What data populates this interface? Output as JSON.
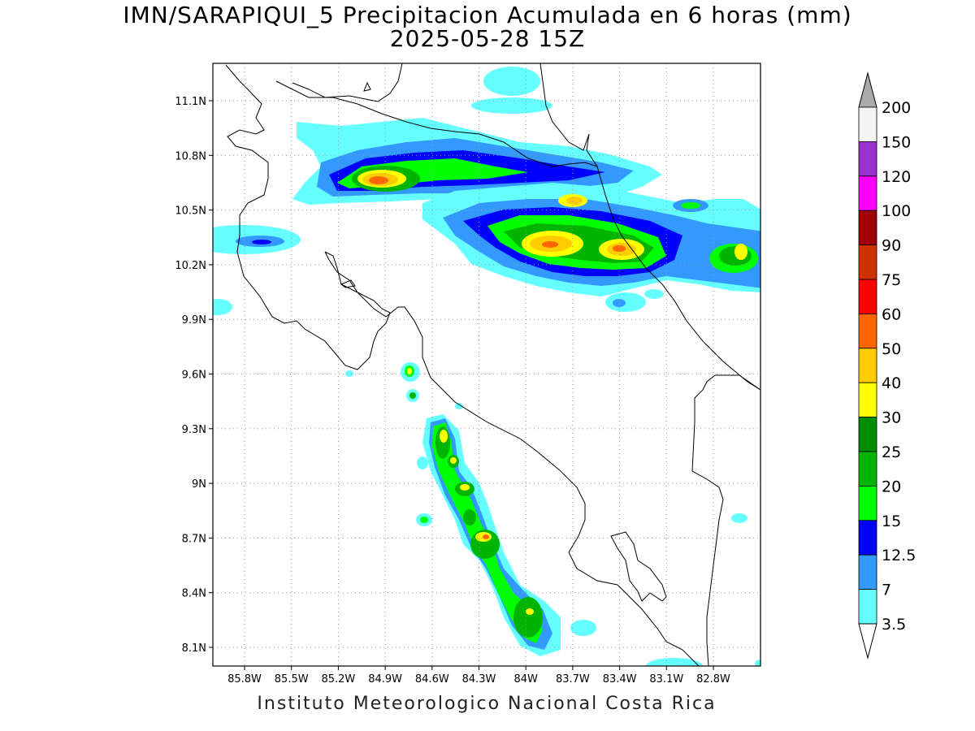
{
  "title": {
    "line1": "IMN/SARAPIQUI_5 Precipitacion Acumulada en 6 horas (mm)",
    "line2": "2025-05-28 15Z"
  },
  "footer": "Instituto Meteorologico Nacional Costa Rica",
  "map": {
    "lat_ticks": [
      "11.1N",
      "10.8N",
      "10.5N",
      "10.2N",
      "9.9N",
      "9.6N",
      "9.3N",
      "9N",
      "8.7N",
      "8.4N",
      "8.1N"
    ],
    "lon_ticks": [
      "85.8W",
      "85.5W",
      "85.2W",
      "84.9W",
      "84.6W",
      "84.3W",
      "84W",
      "83.7W",
      "83.4W",
      "83.1W",
      "82.8W"
    ],
    "grid": true
  },
  "colorbar": {
    "labels": [
      "200",
      "150",
      "120",
      "100",
      "90",
      "75",
      "60",
      "50",
      "40",
      "30",
      "25",
      "20",
      "15",
      "12.5",
      "7",
      "3.5"
    ],
    "colors": [
      "#f4f4f4",
      "#9b30d0",
      "#ff00ff",
      "#a00000",
      "#cc3300",
      "#ff0000",
      "#ff6600",
      "#ffcc00",
      "#ffff00",
      "#008c00",
      "#00b400",
      "#00ff00",
      "#0000ff",
      "#3399ff",
      "#66ffff"
    ],
    "top_arrow_color": "#aaaaaa"
  },
  "legend_colors": {
    "c35": "#66ffff",
    "c7": "#3399ff",
    "c12": "#0000ff",
    "c15": "#00ff00",
    "c20": "#00b400",
    "c25": "#008c00",
    "c30": "#ffff00",
    "c40": "#ffcc00",
    "c50": "#ff6600",
    "c60": "#ff0000"
  }
}
